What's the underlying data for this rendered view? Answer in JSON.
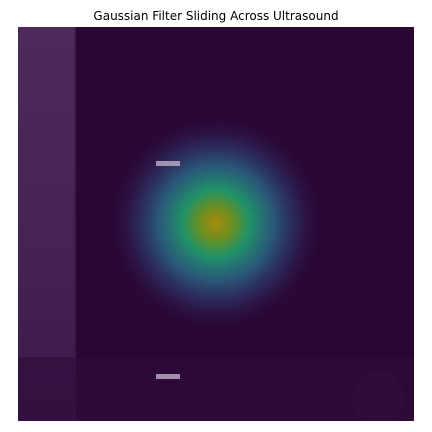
{
  "figure": {
    "title": "Gaussian Filter Sliding Across Ultrasound"
  },
  "image": {
    "type": "heatmap",
    "description_note": "",
    "colormap": "viridis",
    "colors": {
      "background": "#2a0634",
      "strip": "#4a2758",
      "strip_edge": "#5a3a66",
      "glow_outer": "#2e2a5e",
      "glow_mid": "#2f6b8e",
      "glow_inner": "#1f9a6a",
      "glow_core": "#9a8a14",
      "marker": "#b9a6c0"
    },
    "gaussian_peak_level": 0.72,
    "markers_count": 2
  }
}
